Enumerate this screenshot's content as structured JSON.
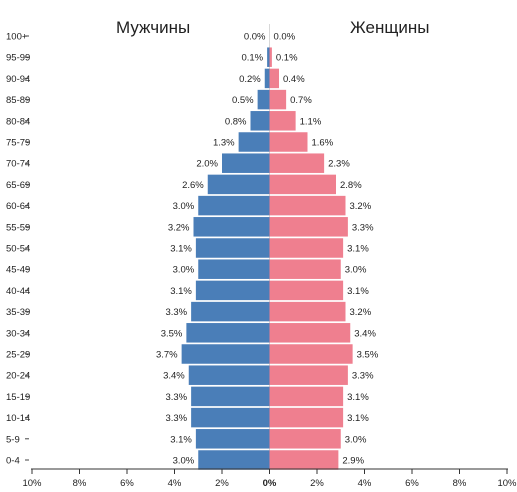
{
  "chart_data": {
    "type": "bar",
    "orientation": "horizontal",
    "layout": "population-pyramid",
    "categories": [
      "100+",
      "95-99",
      "90-94",
      "85-89",
      "80-84",
      "75-79",
      "70-74",
      "65-69",
      "60-64",
      "55-59",
      "50-54",
      "45-49",
      "40-44",
      "35-39",
      "30-34",
      "25-29",
      "20-24",
      "15-19",
      "10-14",
      "5-9",
      "0-4"
    ],
    "series": [
      {
        "name": "Мужчины",
        "color": "#4a7eb8",
        "values": [
          0.0,
          0.1,
          0.2,
          0.5,
          0.8,
          1.3,
          2.0,
          2.6,
          3.0,
          3.2,
          3.1,
          3.0,
          3.1,
          3.3,
          3.5,
          3.7,
          3.4,
          3.3,
          3.3,
          3.1,
          3.0
        ],
        "labels": [
          "0.0%",
          "0.1%",
          "0.2%",
          "0.5%",
          "0.8%",
          "1.3%",
          "2.0%",
          "2.6%",
          "3.0%",
          "3.2%",
          "3.1%",
          "3.0%",
          "3.1%",
          "3.3%",
          "3.5%",
          "3.7%",
          "3.4%",
          "3.3%",
          "3.3%",
          "3.1%",
          "3.0%"
        ]
      },
      {
        "name": "Женщины",
        "color": "#ef7f8f",
        "values": [
          0.0,
          0.1,
          0.4,
          0.7,
          1.1,
          1.6,
          2.3,
          2.8,
          3.2,
          3.3,
          3.1,
          3.0,
          3.1,
          3.2,
          3.4,
          3.5,
          3.3,
          3.1,
          3.1,
          3.0,
          2.9
        ],
        "labels": [
          "0.0%",
          "0.1%",
          "0.4%",
          "0.7%",
          "1.1%",
          "1.6%",
          "2.3%",
          "2.8%",
          "3.2%",
          "3.3%",
          "3.1%",
          "3.0%",
          "3.1%",
          "3.2%",
          "3.4%",
          "3.5%",
          "3.3%",
          "3.1%",
          "3.1%",
          "3.0%",
          "2.9%"
        ]
      }
    ],
    "x_ticks": [
      "10%",
      "8%",
      "6%",
      "4%",
      "2%",
      "0%",
      "2%",
      "4%",
      "6%",
      "8%",
      "10%"
    ],
    "xlim": [
      -10,
      10
    ],
    "grid": false,
    "title": "",
    "xlabel": "",
    "ylabel": ""
  }
}
